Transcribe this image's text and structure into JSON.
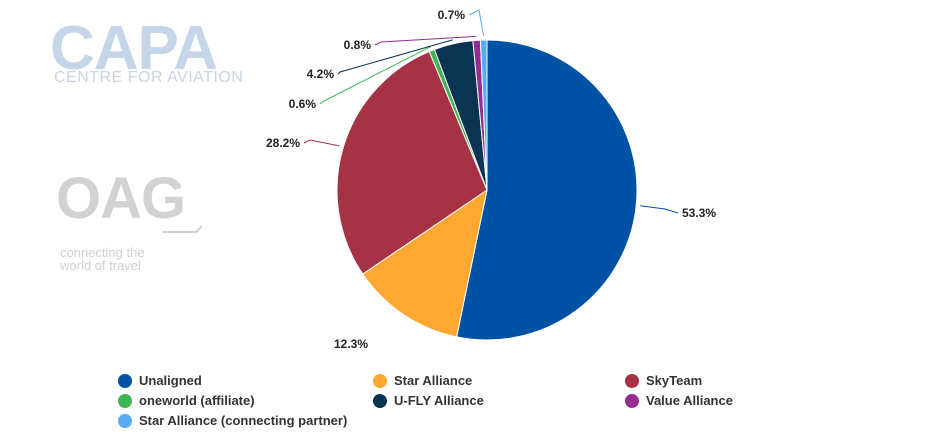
{
  "watermarks": {
    "capa_main": "CAPA",
    "capa_sub": "CENTRE FOR AVIATION",
    "oag_main": "OAG",
    "oag_tag_line1": "connecting the",
    "oag_tag_line2": "world of travel"
  },
  "chart_data": {
    "type": "pie",
    "title": "",
    "legend_position": "bottom",
    "slices": [
      {
        "name": "Unaligned",
        "value": 53.3,
        "label": "53.3%",
        "color": "#0052a5"
      },
      {
        "name": "Star Alliance",
        "value": 12.3,
        "label": "12.3%",
        "color": "#ffa733"
      },
      {
        "name": "SkyTeam",
        "value": 28.2,
        "label": "28.2%",
        "color": "#a63345"
      },
      {
        "name": "oneworld (affiliate)",
        "value": 0.6,
        "label": "0.6%",
        "color": "#3fb551"
      },
      {
        "name": "U-FLY Alliance",
        "value": 4.2,
        "label": "4.2%",
        "color": "#0b3352"
      },
      {
        "name": "Value Alliance",
        "value": 0.8,
        "label": "0.8%",
        "color": "#952d8f"
      },
      {
        "name": "Star Alliance (connecting partner)",
        "value": 0.7,
        "label": "0.7%",
        "color": "#5aaaf0"
      }
    ]
  }
}
